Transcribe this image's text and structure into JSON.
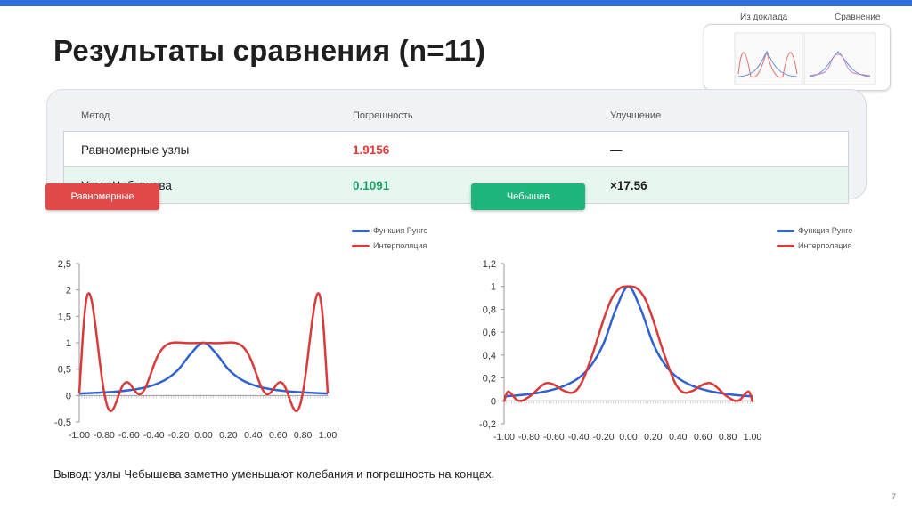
{
  "slide": {
    "title": "Результаты сравнения (n=11)",
    "thumbs": {
      "left_label": "Из доклада",
      "right_label": "Сравнение"
    },
    "conclusion": "Вывод: узлы Чебышева заметно уменьшают колебания и погрешность на концах.",
    "page_number": "7"
  },
  "table": {
    "headers": [
      "Метод",
      "Погрешность",
      "Улучшение"
    ],
    "rows": [
      {
        "method": "Равномерные узлы",
        "error": "1.9156",
        "improvement": "—",
        "error_color": "#e0393a"
      },
      {
        "method": "Узлы Чебышева",
        "error": "0.1091",
        "improvement": "×17.56",
        "error_color": "#18a36a"
      }
    ]
  },
  "pills": {
    "left": "Равномерные",
    "right": "Чебышев"
  },
  "colors": {
    "runge": "#2f62d0",
    "interp": "#d93a3a",
    "accent": "#2f6fdc"
  },
  "chart_data": [
    {
      "type": "line",
      "legend": {
        "position": "top-right",
        "entries": [
          "Функция Рунге",
          "Интерполяция"
        ]
      },
      "x_tick_labels": [
        "-1.00",
        "-0.80",
        "-0.60",
        "-0.40",
        "-0.20",
        "0.00",
        "0.20",
        "0.40",
        "0.60",
        "0.80",
        "1.00"
      ],
      "y_tick_labels": [
        "2,5",
        "2",
        "1,5",
        "1",
        "0,5",
        "0",
        "-0,5"
      ],
      "xlim": [
        -1,
        1
      ],
      "ylim": [
        -0.5,
        2.5
      ],
      "grid": false,
      "series": [
        {
          "name": "Функция Рунге",
          "x": [
            -1,
            -0.9,
            -0.8,
            -0.7,
            -0.6,
            -0.5,
            -0.4,
            -0.3,
            -0.2,
            -0.1,
            0,
            0.1,
            0.2,
            0.3,
            0.4,
            0.5,
            0.6,
            0.7,
            0.8,
            0.9,
            1
          ],
          "y": [
            0.038,
            0.047,
            0.059,
            0.075,
            0.1,
            0.138,
            0.2,
            0.308,
            0.5,
            0.8,
            1,
            0.8,
            0.5,
            0.308,
            0.2,
            0.138,
            0.1,
            0.075,
            0.059,
            0.047,
            0.038
          ]
        },
        {
          "name": "Интерполяция",
          "x": [
            -1,
            -0.98,
            -0.96,
            -0.94,
            -0.92,
            -0.9,
            -0.88,
            -0.86,
            -0.84,
            -0.82,
            -0.8,
            -0.78,
            -0.76,
            -0.74,
            -0.72,
            -0.7,
            -0.68,
            -0.66,
            -0.64,
            -0.62,
            -0.6,
            -0.58,
            -0.56,
            -0.54,
            -0.52,
            -0.5,
            -0.48,
            -0.46,
            -0.44,
            -0.42,
            -0.4,
            -0.38,
            -0.36,
            -0.34,
            -0.32,
            -0.3,
            -0.28,
            -0.26,
            -0.24,
            -0.22,
            -0.2,
            -0.18,
            -0.16,
            -0.14,
            -0.12,
            -0.1,
            -0.08,
            -0.06,
            -0.04,
            -0.02,
            0,
            0.02,
            0.04,
            0.06,
            0.08,
            0.1,
            0.12,
            0.14,
            0.16,
            0.18,
            0.2,
            0.22,
            0.24,
            0.26,
            0.28,
            0.3,
            0.32,
            0.34,
            0.36,
            0.38,
            0.4,
            0.42,
            0.44,
            0.46,
            0.48,
            0.5,
            0.52,
            0.54,
            0.56,
            0.58,
            0.6,
            0.62,
            0.64,
            0.66,
            0.68,
            0.7,
            0.72,
            0.74,
            0.76,
            0.78,
            0.8,
            0.82,
            0.84,
            0.86,
            0.88,
            0.9,
            0.92,
            0.94,
            0.96,
            0.98,
            1
          ],
          "y": [
            0.038,
            0.812,
            1.473,
            1.852,
            1.934,
            1.79,
            1.502,
            1.133,
            0.739,
            0.367,
            0.059,
            -0.158,
            -0.273,
            -0.289,
            -0.224,
            -0.108,
            0.026,
            0.143,
            0.222,
            0.253,
            0.236,
            0.181,
            0.113,
            0.055,
            0.026,
            0.038,
            0.095,
            0.189,
            0.311,
            0.444,
            0.574,
            0.691,
            0.787,
            0.862,
            0.918,
            0.956,
            0.981,
            0.996,
            1.004,
            1.006,
            1.004,
            1.001,
            0.998,
            0.995,
            0.994,
            0.994,
            0.994,
            0.995,
            0.997,
            0.999,
            1,
            0.999,
            0.997,
            0.995,
            0.994,
            0.994,
            0.994,
            0.995,
            0.998,
            1.001,
            1.004,
            1.006,
            1.004,
            0.996,
            0.981,
            0.956,
            0.918,
            0.862,
            0.787,
            0.691,
            0.574,
            0.444,
            0.311,
            0.189,
            0.095,
            0.038,
            0.026,
            0.055,
            0.113,
            0.181,
            0.236,
            0.253,
            0.222,
            0.143,
            0.026,
            -0.108,
            -0.224,
            -0.289,
            -0.273,
            -0.158,
            0.059,
            0.367,
            0.739,
            1.133,
            1.502,
            1.79,
            1.934,
            1.852,
            1.473,
            0.812,
            0.038
          ]
        }
      ]
    },
    {
      "type": "line",
      "legend": {
        "position": "top-right",
        "entries": [
          "Функция Рунге",
          "Интерполяция"
        ]
      },
      "x_tick_labels": [
        "-1.00",
        "-0.80",
        "-0.60",
        "-0.40",
        "-0.20",
        "0.00",
        "0.20",
        "0.40",
        "0.60",
        "0.80",
        "1.00"
      ],
      "y_tick_labels": [
        "1,2",
        "1",
        "0,8",
        "0,6",
        "0,4",
        "0,2",
        "0",
        "-0,2"
      ],
      "xlim": [
        -1,
        1
      ],
      "ylim": [
        -0.2,
        1.2
      ],
      "grid": false,
      "series": [
        {
          "name": "Функция Рунге",
          "x": [
            -1,
            -0.9,
            -0.8,
            -0.7,
            -0.6,
            -0.5,
            -0.4,
            -0.3,
            -0.2,
            -0.1,
            0,
            0.1,
            0.2,
            0.3,
            0.4,
            0.5,
            0.6,
            0.7,
            0.8,
            0.9,
            1
          ],
          "y": [
            0.038,
            0.047,
            0.059,
            0.075,
            0.1,
            0.138,
            0.2,
            0.308,
            0.5,
            0.8,
            1,
            0.8,
            0.5,
            0.308,
            0.2,
            0.138,
            0.1,
            0.075,
            0.059,
            0.047,
            0.038
          ]
        },
        {
          "name": "Интерполяция",
          "x": [
            -1,
            -0.99,
            -0.97,
            -0.94,
            -0.9,
            -0.86,
            -0.82,
            -0.78,
            -0.74,
            -0.7,
            -0.66,
            -0.62,
            -0.58,
            -0.54,
            -0.5,
            -0.46,
            -0.42,
            -0.38,
            -0.34,
            -0.3,
            -0.26,
            -0.22,
            -0.18,
            -0.14,
            -0.1,
            -0.06,
            -0.02,
            0,
            0.02,
            0.06,
            0.1,
            0.14,
            0.18,
            0.22,
            0.26,
            0.3,
            0.34,
            0.38,
            0.42,
            0.46,
            0.5,
            0.54,
            0.58,
            0.62,
            0.66,
            0.7,
            0.74,
            0.78,
            0.82,
            0.86,
            0.9,
            0.94,
            0.97,
            0.99,
            1
          ],
          "y": [
            -0.01,
            0.03,
            0.08,
            0.06,
            0.01,
            0.0,
            0.02,
            0.05,
            0.09,
            0.13,
            0.155,
            0.15,
            0.13,
            0.1,
            0.08,
            0.07,
            0.09,
            0.15,
            0.25,
            0.37,
            0.5,
            0.64,
            0.77,
            0.88,
            0.95,
            0.99,
            1,
            1,
            1,
            0.99,
            0.95,
            0.88,
            0.77,
            0.64,
            0.5,
            0.37,
            0.25,
            0.15,
            0.09,
            0.07,
            0.08,
            0.1,
            0.13,
            0.15,
            0.155,
            0.13,
            0.09,
            0.05,
            0.02,
            0.0,
            0.01,
            0.06,
            0.08,
            0.03,
            -0.01
          ]
        }
      ]
    }
  ]
}
